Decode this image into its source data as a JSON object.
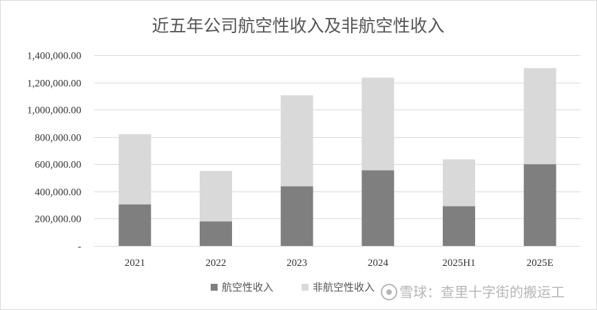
{
  "chart_data": {
    "type": "bar",
    "stacked": true,
    "title": "近五年公司航空性收入及非航空性收入",
    "categories": [
      "2021",
      "2022",
      "2023",
      "2024",
      "2025H1",
      "2025E"
    ],
    "series": [
      {
        "name": "航空性收入",
        "values": [
          305000,
          180000,
          438000,
          555000,
          292000,
          600000
        ],
        "color": "#7f7f7f"
      },
      {
        "name": "非航空性收入",
        "values": [
          515000,
          370000,
          667000,
          680000,
          343000,
          705000
        ],
        "color": "#d9d9d9"
      }
    ],
    "ylim": [
      0,
      1400000
    ],
    "yticks": [
      0,
      200000,
      400000,
      600000,
      800000,
      1000000,
      1200000,
      1400000
    ],
    "ytick_labels": [
      "-",
      "200,000.00",
      "400,000.00",
      "600,000.00",
      "800,000.00",
      "1,000,000.00",
      "1,200,000.00",
      "1,400,000.00"
    ],
    "grid": true,
    "legend_position": "bottom",
    "xlabel": "",
    "ylabel": ""
  },
  "watermark": {
    "text": "雪球：查里十字街的搬运工",
    "icon": "snowball-logo-icon"
  }
}
